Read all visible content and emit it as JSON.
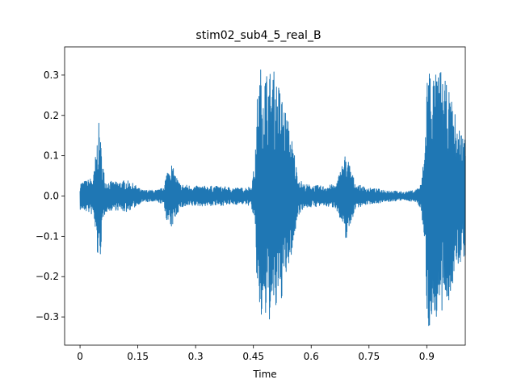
{
  "chart_data": {
    "type": "line",
    "title": "stim02_sub4_5_real_B",
    "xlabel": "Time",
    "ylabel": "",
    "xlim": [
      -0.04,
      1.0
    ],
    "ylim": [
      -0.37,
      0.37
    ],
    "x_ticks": [
      0,
      0.15,
      0.3,
      0.45,
      0.6,
      0.75,
      0.9
    ],
    "x_tick_labels": [
      "0",
      "0.15",
      "0.3",
      "0.45",
      "0.6",
      "0.75",
      "0.9"
    ],
    "y_ticks": [
      -0.3,
      -0.2,
      -0.1,
      0.0,
      0.1,
      0.2,
      0.3
    ],
    "y_tick_labels": [
      "−0.3",
      "−0.2",
      "−0.1",
      "0.0",
      "0.1",
      "0.2",
      "0.3"
    ],
    "grid": false,
    "series": [
      {
        "color": "#1f77b4",
        "envelope": [
          {
            "t": 0.0,
            "amp": 0.035
          },
          {
            "t": 0.02,
            "amp": 0.04
          },
          {
            "t": 0.035,
            "amp": 0.05
          },
          {
            "t": 0.045,
            "amp": 0.15
          },
          {
            "t": 0.05,
            "amp": 0.19
          },
          {
            "t": 0.055,
            "amp": 0.12
          },
          {
            "t": 0.065,
            "amp": 0.04
          },
          {
            "t": 0.09,
            "amp": 0.035
          },
          {
            "t": 0.12,
            "amp": 0.04
          },
          {
            "t": 0.14,
            "amp": 0.03
          },
          {
            "t": 0.16,
            "amp": 0.015
          },
          {
            "t": 0.2,
            "amp": 0.015
          },
          {
            "t": 0.215,
            "amp": 0.02
          },
          {
            "t": 0.225,
            "amp": 0.06
          },
          {
            "t": 0.235,
            "amp": 0.09
          },
          {
            "t": 0.245,
            "amp": 0.06
          },
          {
            "t": 0.26,
            "amp": 0.03
          },
          {
            "t": 0.3,
            "amp": 0.025
          },
          {
            "t": 0.35,
            "amp": 0.025
          },
          {
            "t": 0.42,
            "amp": 0.02
          },
          {
            "t": 0.445,
            "amp": 0.025
          },
          {
            "t": 0.455,
            "amp": 0.1
          },
          {
            "t": 0.46,
            "amp": 0.25
          },
          {
            "t": 0.47,
            "amp": 0.33
          },
          {
            "t": 0.49,
            "amp": 0.31
          },
          {
            "t": 0.5,
            "amp": 0.32
          },
          {
            "t": 0.52,
            "amp": 0.27
          },
          {
            "t": 0.54,
            "amp": 0.19
          },
          {
            "t": 0.555,
            "amp": 0.12
          },
          {
            "t": 0.565,
            "amp": 0.05
          },
          {
            "t": 0.58,
            "amp": 0.03
          },
          {
            "t": 0.63,
            "amp": 0.025
          },
          {
            "t": 0.665,
            "amp": 0.03
          },
          {
            "t": 0.68,
            "amp": 0.08
          },
          {
            "t": 0.69,
            "amp": 0.11
          },
          {
            "t": 0.7,
            "amp": 0.08
          },
          {
            "t": 0.715,
            "amp": 0.03
          },
          {
            "t": 0.75,
            "amp": 0.02
          },
          {
            "t": 0.8,
            "amp": 0.015
          },
          {
            "t": 0.84,
            "amp": 0.01
          },
          {
            "t": 0.87,
            "amp": 0.015
          },
          {
            "t": 0.885,
            "amp": 0.03
          },
          {
            "t": 0.895,
            "amp": 0.12
          },
          {
            "t": 0.9,
            "amp": 0.32
          },
          {
            "t": 0.905,
            "amp": 0.34
          },
          {
            "t": 0.92,
            "amp": 0.3
          },
          {
            "t": 0.935,
            "amp": 0.32
          },
          {
            "t": 0.95,
            "amp": 0.28
          },
          {
            "t": 0.965,
            "amp": 0.24
          },
          {
            "t": 0.98,
            "amp": 0.18
          },
          {
            "t": 1.0,
            "amp": 0.15
          }
        ]
      }
    ]
  }
}
